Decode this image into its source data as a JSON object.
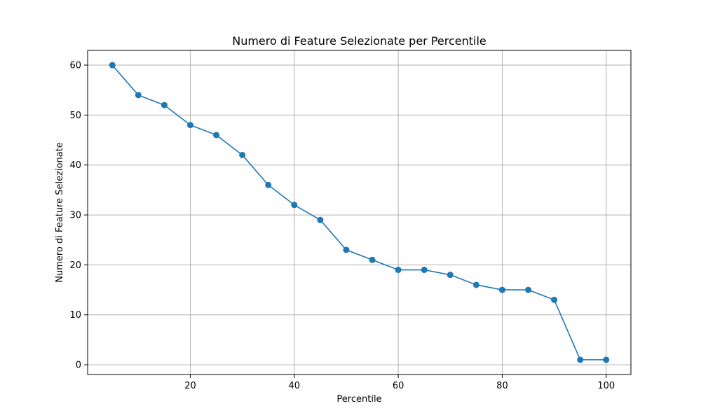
{
  "chart_data": {
    "type": "line",
    "title": "Numero di Feature Selezionate per Percentile",
    "xlabel": "Percentile",
    "ylabel": "Numero di Feature Selezionate",
    "xlim": [
      0.25,
      104.75
    ],
    "ylim": [
      -1.95,
      62.95
    ],
    "x_ticks": [
      20,
      40,
      60,
      80,
      100
    ],
    "y_ticks": [
      0,
      10,
      20,
      30,
      40,
      50,
      60
    ],
    "grid": true,
    "series": [
      {
        "color": "#1f77b4",
        "marker": "circle",
        "x": [
          5,
          10,
          15,
          20,
          25,
          30,
          35,
          40,
          45,
          50,
          55,
          60,
          65,
          70,
          75,
          80,
          85,
          90,
          95,
          100
        ],
        "y": [
          60,
          54,
          52,
          48,
          46,
          42,
          36,
          32,
          29,
          23,
          21,
          19,
          19,
          18,
          16,
          15,
          15,
          13,
          1,
          1
        ]
      }
    ]
  }
}
